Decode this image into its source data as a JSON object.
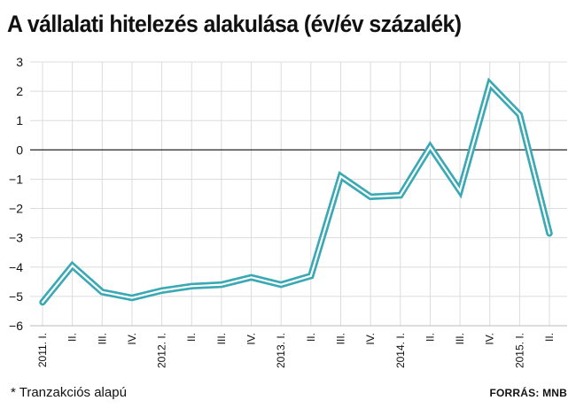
{
  "chart_data": {
    "type": "line",
    "title": "A vállalati hitelezés alakulása (év/év százalék)",
    "categories": [
      "2011. I.",
      "II.",
      "III.",
      "IV.",
      "2012. I.",
      "II.",
      "III.",
      "IV.",
      "2013. I.",
      "II.",
      "III.",
      "IV.",
      "2014. I.",
      "II.",
      "III.",
      "IV.",
      "2015. I.",
      "II."
    ],
    "series": [
      {
        "name": "Vállalati hitelezés",
        "color": "#3aa9b4",
        "values": [
          -5.2,
          -3.95,
          -4.85,
          -5.05,
          -4.8,
          -4.65,
          -4.6,
          -4.35,
          -4.6,
          -4.3,
          -0.9,
          -1.6,
          -1.55,
          0.1,
          -1.4,
          2.25,
          1.2,
          -2.85
        ]
      }
    ],
    "xlabel": "",
    "ylabel": "",
    "ylim": [
      -6,
      3
    ],
    "yticks": [
      "3",
      "2",
      "1",
      "0",
      "−1",
      "−2",
      "−3",
      "−4",
      "−5",
      "−6"
    ],
    "ytick_values": [
      3,
      2,
      1,
      0,
      -1,
      -2,
      -3,
      -4,
      -5,
      -6
    ],
    "grid": true
  },
  "footnote": "* Tranzakciós alapú",
  "source": "FORRÁS: MNB"
}
